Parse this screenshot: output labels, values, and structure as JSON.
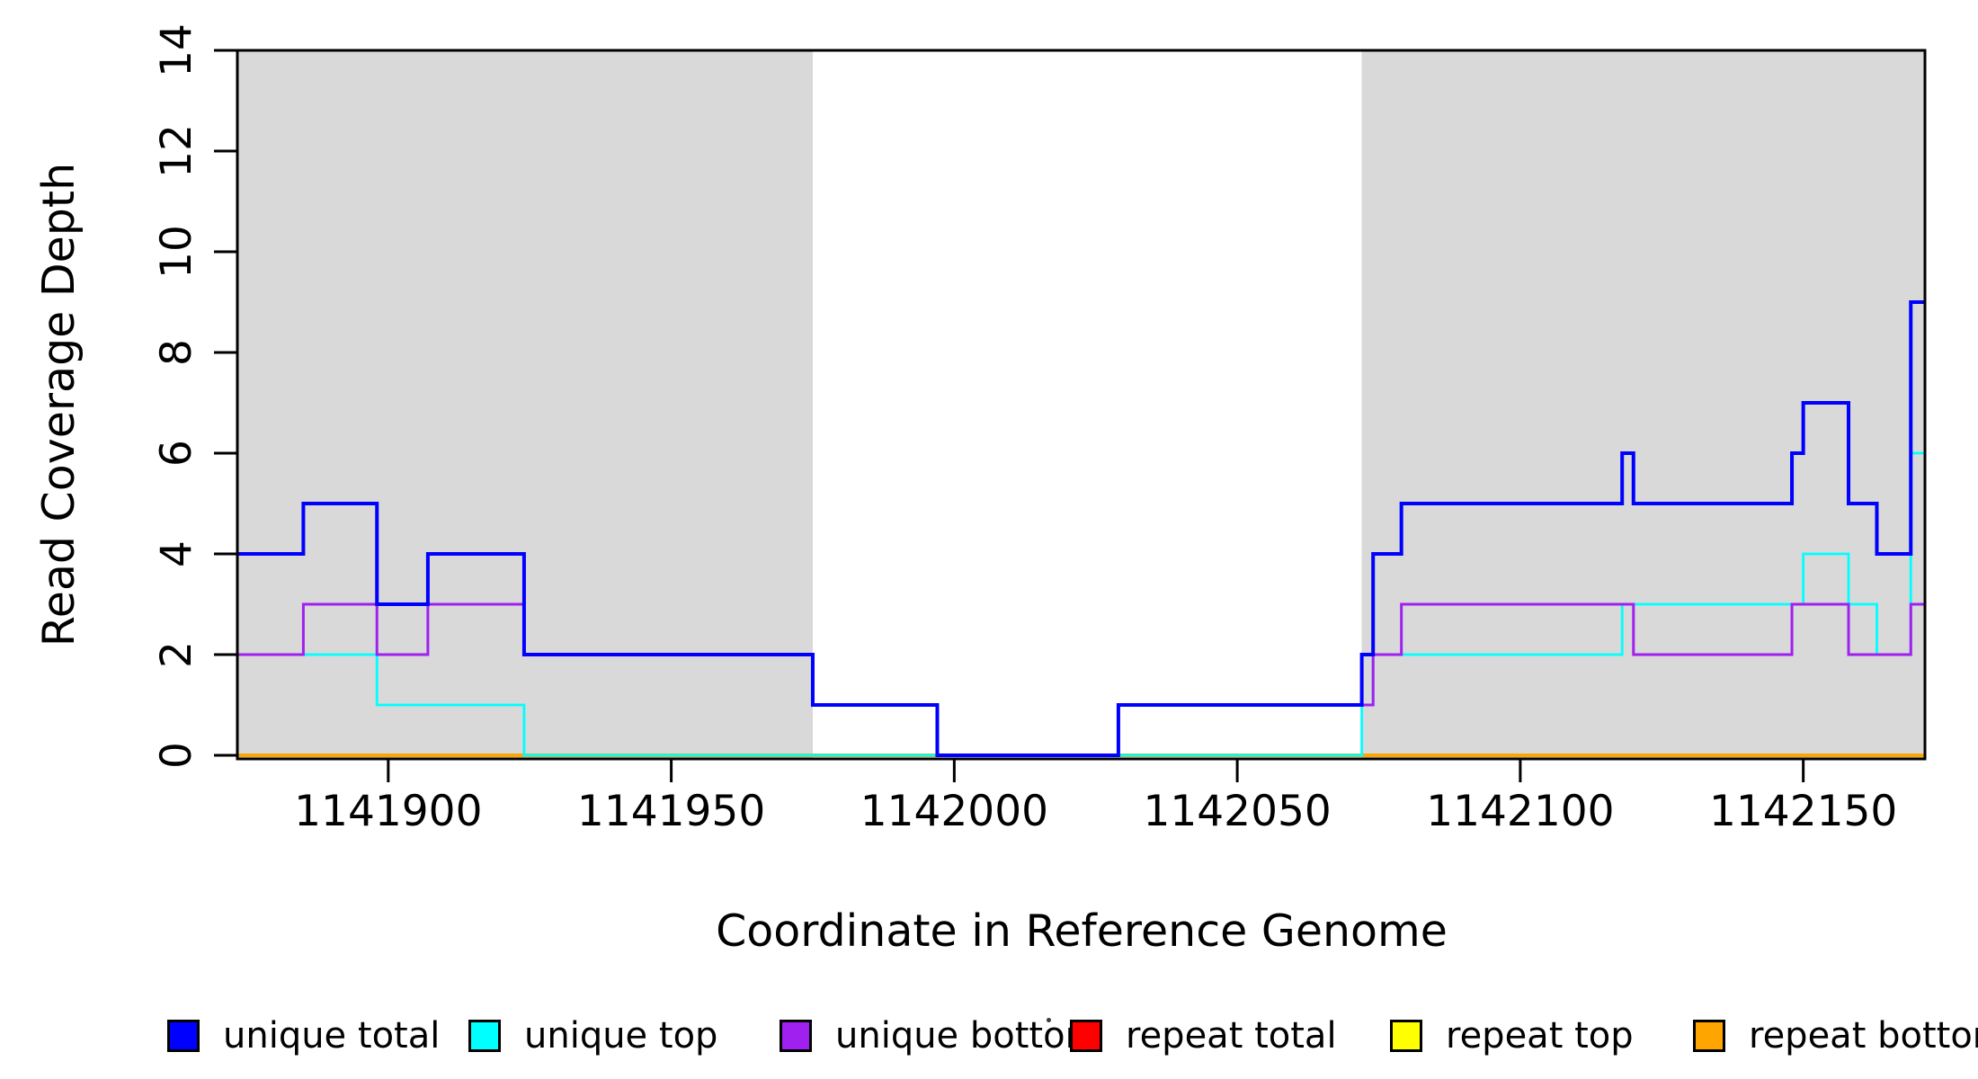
{
  "figure": {
    "xlabel": "Coordinate in Reference Genome",
    "ylabel": "Read Coverage Depth"
  },
  "legend": {
    "items": [
      {
        "label": "unique total",
        "color": "#0000ff"
      },
      {
        "label": "unique top",
        "color": "#00ffff"
      },
      {
        "label": "unique bottom",
        "color": "#a020f0"
      },
      {
        "label": "repeat total",
        "color": "#ff0000"
      },
      {
        "label": "repeat top",
        "color": "#ffff00"
      },
      {
        "label": "repeat bottom",
        "color": "#ffa500"
      }
    ]
  },
  "chart_data": {
    "type": "line",
    "step": true,
    "title": "",
    "xlabel": "Coordinate in Reference Genome",
    "ylabel": "Read Coverage Depth",
    "x_domain": [
      1141873.5,
      1142171.5
    ],
    "y_domain": [
      0,
      14
    ],
    "x_ticks": [
      1141900,
      1141950,
      1142000,
      1142050,
      1142100,
      1142150
    ],
    "y_ticks": [
      0,
      2,
      4,
      6,
      8,
      10,
      12,
      14
    ],
    "grid": false,
    "legend_position": "bottom",
    "shade_color": "#d9d9d9",
    "shaded_regions": [
      {
        "x0": 1141873.5,
        "x1": 1141975
      },
      {
        "x0": 1142072,
        "x1": 1142171.5
      }
    ],
    "series": [
      {
        "name": "unique total",
        "color": "#0000ff",
        "z": 5,
        "line_width": 4,
        "breakpoints": [
          [
            1141873.5,
            4
          ],
          [
            1141885,
            5
          ],
          [
            1141898,
            3
          ],
          [
            1141907,
            4
          ],
          [
            1141924,
            2
          ],
          [
            1141975,
            1
          ],
          [
            1141997,
            0
          ],
          [
            1142029,
            1
          ],
          [
            1142072,
            2
          ],
          [
            1142074,
            4
          ],
          [
            1142079,
            5
          ],
          [
            1142118,
            6
          ],
          [
            1142120,
            5
          ],
          [
            1142148,
            6
          ],
          [
            1142150,
            7
          ],
          [
            1142158,
            5
          ],
          [
            1142163,
            4
          ],
          [
            1142169,
            9
          ]
        ]
      },
      {
        "name": "unique top",
        "color": "#00ffff",
        "z": 3,
        "line_width": 2.8,
        "breakpoints": [
          [
            1141873.5,
            2
          ],
          [
            1141898,
            1
          ],
          [
            1141924,
            0
          ],
          [
            1142072,
            1
          ],
          [
            1142074,
            2
          ],
          [
            1142118,
            3
          ],
          [
            1142150,
            4
          ],
          [
            1142158,
            3
          ],
          [
            1142163,
            2
          ],
          [
            1142169,
            6
          ]
        ]
      },
      {
        "name": "unique bottom",
        "color": "#a020f0",
        "z": 4,
        "line_width": 3,
        "breakpoints": [
          [
            1141873.5,
            2
          ],
          [
            1141885,
            3
          ],
          [
            1141898,
            2
          ],
          [
            1141907,
            3
          ],
          [
            1141924,
            2
          ],
          [
            1141975,
            1
          ],
          [
            1141997,
            0
          ],
          [
            1142029,
            1
          ],
          [
            1142074,
            2
          ],
          [
            1142079,
            3
          ],
          [
            1142120,
            2
          ],
          [
            1142148,
            3
          ],
          [
            1142158,
            2
          ],
          [
            1142169,
            3
          ]
        ]
      },
      {
        "name": "repeat total",
        "color": "#ff0000",
        "z": 0,
        "line_width": 3,
        "breakpoints": [
          [
            1141873.5,
            0
          ]
        ]
      },
      {
        "name": "repeat top",
        "color": "#ffff00",
        "z": 1,
        "line_width": 3,
        "breakpoints": [
          [
            1141873.5,
            0
          ]
        ]
      },
      {
        "name": "repeat bottom",
        "color": "#ffa500",
        "z": 2,
        "line_width": 4,
        "breakpoints": [
          [
            1141873.5,
            0
          ]
        ]
      }
    ]
  }
}
